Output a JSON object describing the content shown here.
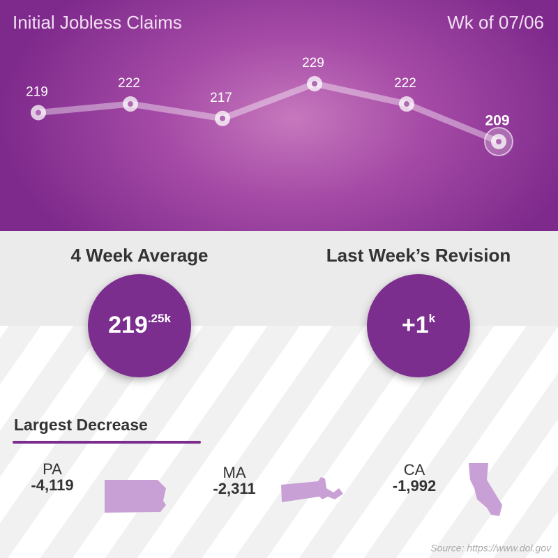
{
  "chart_data": {
    "type": "line",
    "title": "Initial Jobless Claims",
    "subtitle": "Wk of 07/06",
    "values": [
      219,
      222,
      217,
      229,
      222,
      209
    ],
    "color": "#ffffff"
  },
  "stats": [
    {
      "title": "4 Week Average",
      "value": "219",
      "suffix": ".25k"
    },
    {
      "title": "Last Week’s Revision",
      "value": "+1",
      "suffix": "k"
    }
  ],
  "largest_decrease": {
    "title": "Largest Decrease",
    "states": [
      {
        "name": "PA",
        "value": "-4,119"
      },
      {
        "name": "MA",
        "value": "-2,311"
      },
      {
        "name": "CA",
        "value": "-1,992"
      }
    ]
  },
  "source": "Source: https://www.dol.gov"
}
